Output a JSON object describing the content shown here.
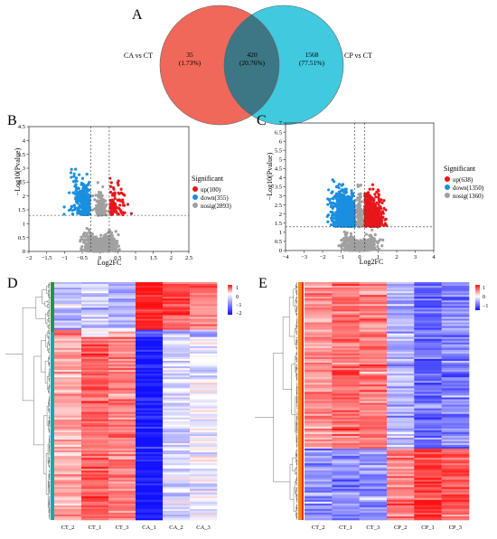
{
  "panel_letters": {
    "A": "A",
    "B": "B",
    "C": "C",
    "D": "D",
    "E": "E"
  },
  "colors": {
    "venn_left": "#f0685a",
    "venn_right": "#40c9df",
    "venn_overlap": "#3d7684",
    "up": "#e8161b",
    "down": "#1a8fdf",
    "nosig": "#a0a0a0",
    "heat_high": "#ff1111",
    "heat_mid": "#ffffff",
    "heat_low": "#1111ff",
    "group_green": "#1c9a3c",
    "group_teal": "#17a6b4",
    "group_orange": "#f08c0a",
    "group_red": "#e22a1a"
  },
  "venn": {
    "left_label": "CA vs CT",
    "right_label": "CP vs CT",
    "left_only": {
      "count": "35",
      "percent": "(1.73%)"
    },
    "overlap": {
      "count": "420",
      "percent": "(20.76%)"
    },
    "right_only": {
      "count": "1568",
      "percent": "(77.51%)"
    }
  },
  "chart_data": [
    {
      "type": "scatter",
      "panel": "B",
      "xlabel": "Log2FC",
      "ylabel": "−Log10(Pvalue)",
      "xlim": [
        -2,
        2.5
      ],
      "ylim": [
        0,
        4.5
      ],
      "x_ticks": [
        -2,
        -1.5,
        -1,
        -0.5,
        0,
        0.5,
        1,
        1.5,
        2,
        2.5
      ],
      "x_tick_labels": [
        "−2",
        "−1.5",
        "−1",
        "−0.5",
        "0",
        "0.5",
        "1",
        "1.5",
        "2",
        "2.5"
      ],
      "y_ticks": [
        0,
        0.5,
        1,
        1.5,
        2,
        2.5,
        3,
        3.5,
        4,
        4.5
      ],
      "y_tick_labels": [
        "0",
        "0.5",
        "1",
        "1.5",
        "2",
        "2.5",
        "3",
        "3.5",
        "4",
        "4.5"
      ],
      "threshold_lines": {
        "x": [
          -0.26,
          0.26
        ],
        "y": 1.3
      },
      "legend": {
        "title": "Significant",
        "placement": "right",
        "entries": [
          "up(100)",
          "down(355)",
          "nosig(2893)"
        ]
      },
      "series": [
        {
          "name": "up(100)",
          "count": 100
        },
        {
          "name": "down(355)",
          "count": 355
        },
        {
          "name": "nosig(2893)",
          "count": 2893
        }
      ]
    },
    {
      "type": "scatter",
      "panel": "C",
      "xlabel": "Log2FC",
      "ylabel": "−Log10(Pvalue)",
      "xlim": [
        -4,
        4
      ],
      "ylim": [
        0,
        7
      ],
      "x_ticks": [
        -4,
        -3,
        -2,
        -1,
        0,
        1,
        2,
        3,
        4
      ],
      "x_tick_labels": [
        "−4",
        "−3",
        "−2",
        "−1",
        "0",
        "1",
        "2",
        "3",
        "4"
      ],
      "y_ticks": [
        0,
        0.5,
        1,
        1.5,
        2,
        2.5,
        3,
        3.5,
        4,
        4.5,
        5,
        5.5,
        6,
        6.5,
        7
      ],
      "y_tick_labels": [
        "0",
        "0.5",
        "1",
        "1.5",
        "2",
        "2.5",
        "3",
        "3.5",
        "4",
        "4.5",
        "5",
        "5.5",
        "6",
        "6.5",
        "7"
      ],
      "threshold_lines": {
        "x": [
          -0.26,
          0.26
        ],
        "y": 1.3
      },
      "legend": {
        "title": "Significant",
        "placement": "right",
        "entries": [
          "up(638)",
          "down(1350)",
          "nosig(1360)"
        ]
      },
      "series": [
        {
          "name": "up(638)",
          "count": 638
        },
        {
          "name": "down(1350)",
          "count": 1350
        },
        {
          "name": "nosig(1360)",
          "count": 1360
        }
      ]
    },
    {
      "type": "heatmap",
      "panel": "D",
      "columns": [
        "CT_2",
        "CT_1",
        "CT_3",
        "CA_1",
        "CA_2",
        "CA_3"
      ],
      "color_scale": {
        "labels": [
          "1",
          "0",
          "−1",
          "−2"
        ],
        "range": [
          -2,
          1.2
        ]
      }
    },
    {
      "type": "heatmap",
      "panel": "E",
      "columns": [
        "CT_2",
        "CT_1",
        "CT_3",
        "CP_2",
        "CP_1",
        "CP_3"
      ],
      "color_scale": {
        "labels": [
          "1",
          "0",
          "−1"
        ],
        "range": [
          -1.4,
          1.2
        ]
      }
    }
  ]
}
